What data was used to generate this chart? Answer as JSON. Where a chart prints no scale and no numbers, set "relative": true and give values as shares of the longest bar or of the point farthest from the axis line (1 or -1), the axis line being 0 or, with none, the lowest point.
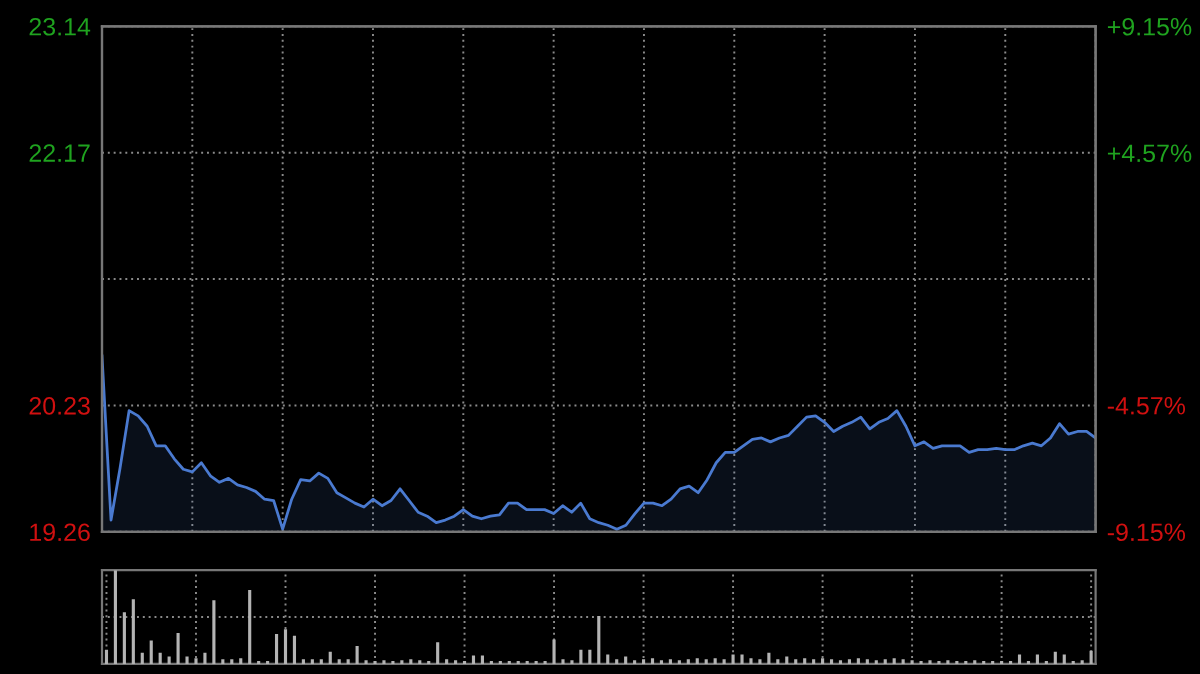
{
  "chart_data": [
    {
      "type": "area",
      "color": "#4a7ad0",
      "grid": true,
      "categories": [
        null,
        null,
        null,
        null,
        null,
        null,
        null,
        null,
        null,
        null,
        null,
        null,
        null,
        null,
        null,
        null,
        null,
        null,
        null,
        null,
        null,
        null,
        null,
        null,
        null,
        null,
        null,
        null,
        null,
        null,
        null,
        null,
        null,
        null,
        null,
        null,
        null,
        null,
        null,
        null,
        null,
        null,
        null,
        null,
        null,
        null,
        null,
        null,
        null,
        null,
        null,
        null,
        null,
        null,
        null,
        null,
        null,
        null,
        null,
        null,
        null,
        null,
        null,
        null,
        null,
        null,
        null,
        null,
        null,
        null,
        null,
        null,
        null,
        null,
        null,
        null,
        null,
        null,
        null,
        null,
        null,
        null,
        null,
        null,
        null,
        null,
        null,
        null,
        null,
        null,
        null,
        null,
        null,
        null,
        null,
        null,
        null,
        null,
        null,
        null,
        null,
        null,
        null,
        null,
        null,
        null,
        null,
        null,
        null,
        null,
        null
      ],
      "values": [
        20.61,
        19.35,
        19.75,
        20.19,
        20.15,
        20.07,
        19.92,
        19.92,
        19.82,
        19.74,
        19.72,
        19.79,
        19.69,
        19.64,
        19.67,
        19.62,
        19.6,
        19.57,
        19.51,
        19.5,
        19.28,
        19.51,
        19.66,
        19.65,
        19.71,
        19.67,
        19.56,
        19.52,
        19.48,
        19.45,
        19.51,
        19.46,
        19.5,
        19.59,
        19.5,
        19.41,
        19.38,
        19.33,
        19.35,
        19.38,
        19.43,
        19.38,
        19.36,
        19.38,
        19.39,
        19.48,
        19.48,
        19.43,
        19.43,
        19.43,
        19.4,
        19.46,
        19.41,
        19.48,
        19.36,
        19.33,
        19.31,
        19.28,
        19.31,
        19.4,
        19.48,
        19.48,
        19.46,
        19.51,
        19.59,
        19.61,
        19.56,
        19.66,
        19.79,
        19.87,
        19.87,
        19.92,
        19.97,
        19.98,
        19.95,
        19.98,
        20.0,
        20.07,
        20.14,
        20.15,
        20.1,
        20.03,
        20.07,
        20.1,
        20.14,
        20.05,
        20.1,
        20.13,
        20.19,
        20.07,
        19.92,
        19.95,
        19.9,
        19.92,
        19.92,
        19.92,
        19.87,
        19.89,
        19.89,
        19.9,
        19.89,
        19.89,
        19.92,
        19.94,
        19.92,
        19.98,
        20.09,
        20.01,
        20.03,
        20.03,
        19.98
      ],
      "ylim": [
        19.26,
        23.14
      ],
      "yticks": [
        19.26,
        20.23,
        {
          "value": 21.2,
          "label": null
        },
        22.17,
        23.14
      ],
      "y2lim": [
        -9.15,
        9.15
      ],
      "y2ticks": [
        {
          "value": -9.15,
          "label": "-9.15%"
        },
        {
          "value": -4.57,
          "label": "-4.57%"
        },
        {
          "value": 0,
          "label": null
        },
        {
          "value": 4.57,
          "label": "+4.57%"
        },
        {
          "value": 9.15,
          "label": "+9.15%"
        }
      ]
    },
    {
      "type": "bar",
      "relative": true,
      "color": "#b4b4b4",
      "grid": true,
      "categories": [
        null,
        null,
        null,
        null,
        null,
        null,
        null,
        null,
        null,
        null,
        null,
        null,
        null,
        null,
        null,
        null,
        null,
        null,
        null,
        null,
        null,
        null,
        null,
        null,
        null,
        null,
        null,
        null,
        null,
        null,
        null,
        null,
        null,
        null,
        null,
        null,
        null,
        null,
        null,
        null,
        null,
        null,
        null,
        null,
        null,
        null,
        null,
        null,
        null,
        null,
        null,
        null,
        null,
        null,
        null,
        null,
        null,
        null,
        null,
        null,
        null,
        null,
        null,
        null,
        null,
        null,
        null,
        null,
        null,
        null,
        null,
        null,
        null,
        null,
        null,
        null,
        null,
        null,
        null,
        null,
        null,
        null,
        null,
        null,
        null,
        null,
        null,
        null,
        null,
        null,
        null,
        null,
        null,
        null,
        null,
        null,
        null,
        null,
        null,
        null,
        null,
        null,
        null,
        null,
        null,
        null,
        null,
        null,
        null,
        null,
        null
      ],
      "values": [
        0.15,
        1.0,
        0.55,
        0.69,
        0.12,
        0.25,
        0.12,
        0.08,
        0.33,
        0.08,
        0.06,
        0.12,
        0.68,
        0.05,
        0.05,
        0.06,
        0.79,
        0.03,
        0.03,
        0.32,
        0.37,
        0.3,
        0.05,
        0.05,
        0.05,
        0.13,
        0.05,
        0.05,
        0.19,
        0.04,
        0.03,
        0.04,
        0.03,
        0.04,
        0.05,
        0.04,
        0.03,
        0.23,
        0.05,
        0.04,
        0.03,
        0.09,
        0.09,
        0.03,
        0.03,
        0.03,
        0.03,
        0.03,
        0.03,
        0.03,
        0.26,
        0.05,
        0.04,
        0.15,
        0.15,
        0.51,
        0.1,
        0.05,
        0.08,
        0.04,
        0.05,
        0.06,
        0.04,
        0.05,
        0.04,
        0.05,
        0.06,
        0.05,
        0.06,
        0.05,
        0.1,
        0.1,
        0.06,
        0.05,
        0.12,
        0.05,
        0.08,
        0.05,
        0.06,
        0.05,
        0.06,
        0.05,
        0.04,
        0.05,
        0.06,
        0.05,
        0.04,
        0.05,
        0.06,
        0.05,
        0.04,
        0.03,
        0.04,
        0.03,
        0.04,
        0.03,
        0.03,
        0.04,
        0.03,
        0.03,
        0.03,
        0.03,
        0.1,
        0.03,
        0.1,
        0.03,
        0.13,
        0.1,
        0.03,
        0.04,
        0.14
      ]
    }
  ]
}
